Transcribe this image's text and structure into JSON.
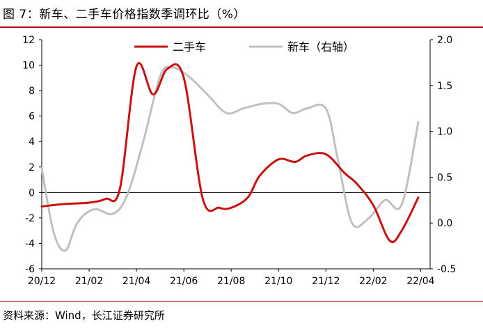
{
  "figure": {
    "title": "图 7：新车、二手车价格指数季调环比（%）",
    "source": "资料来源：Wind，长江证券研究所"
  },
  "chart_data": {
    "type": "line",
    "x_ticks": [
      "20/12",
      "21/02",
      "21/04",
      "21/06",
      "21/08",
      "21/10",
      "21/12",
      "22/02",
      "22/04"
    ],
    "x_range": [
      0,
      16.4
    ],
    "y_left": {
      "min": -6,
      "max": 12,
      "ticks": [
        -6,
        -4,
        -2,
        0,
        2,
        4,
        6,
        8,
        10,
        12
      ]
    },
    "y_right": {
      "min": -0.5,
      "max": 2.0,
      "ticks": [
        "-0.5",
        "0.0",
        "0.5",
        "1.0",
        "1.5",
        "2.0"
      ]
    },
    "legend": {
      "placement": "top"
    },
    "series": [
      {
        "name": "二手车",
        "axis": "left",
        "color": "#cc1111",
        "x": [
          0,
          1,
          2,
          2.7,
          3.3,
          4,
          4.7,
          5.3,
          6,
          6.8,
          7.5,
          8,
          8.7,
          9.2,
          10,
          10.7,
          11.2,
          12,
          12.8,
          13.3,
          14,
          14.7,
          15.2,
          15.9
        ],
        "y": [
          -1.1,
          -0.9,
          -0.8,
          -0.5,
          0.3,
          9.9,
          7.7,
          9.7,
          9.0,
          -0.5,
          -1.2,
          -1.2,
          -0.4,
          1.3,
          2.6,
          2.4,
          2.9,
          3.0,
          1.5,
          0.7,
          -1.0,
          -3.8,
          -3.0,
          -0.4
        ]
      },
      {
        "name": "新车（右轴）",
        "axis": "right",
        "color": "#c0c0c0",
        "x": [
          0,
          0.5,
          1,
          1.5,
          2.2,
          3,
          3.6,
          4.3,
          5,
          5.5,
          6.2,
          7,
          7.8,
          8.5,
          9.3,
          10,
          10.6,
          11.2,
          12,
          12.5,
          13.1,
          13.8,
          14.5,
          15.2,
          15.9
        ],
        "y": [
          0.6,
          -0.1,
          -0.3,
          0.0,
          0.15,
          0.1,
          0.3,
          0.9,
          1.6,
          1.7,
          1.6,
          1.4,
          1.2,
          1.25,
          1.3,
          1.3,
          1.2,
          1.25,
          1.25,
          0.7,
          0.0,
          0.05,
          0.25,
          0.2,
          1.1
        ]
      }
    ]
  }
}
